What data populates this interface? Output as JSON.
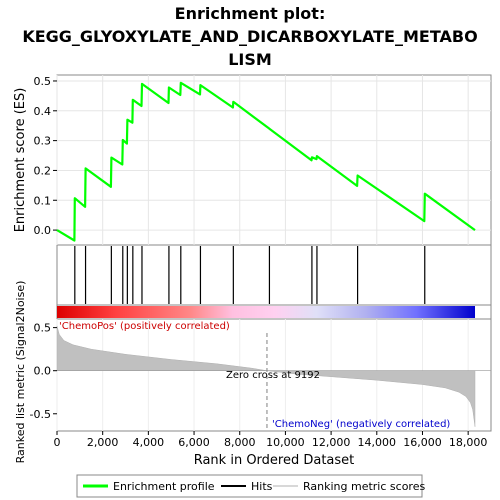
{
  "chart_data": {
    "type": "line",
    "title_lines": [
      "Enrichment plot:",
      "KEGG_GLYOXYLATE_AND_DICARBOXYLATE_METABO",
      "LISM"
    ],
    "ylabel_top": "Enrichment score (ES)",
    "ylabel_bottom": "Ranked list metric (Signal2Noise)",
    "xlabel": "Rank in Ordered Dataset",
    "x_ticks": [
      0,
      2000,
      4000,
      6000,
      8000,
      10000,
      12000,
      14000,
      16000,
      18000
    ],
    "x_tick_labels": [
      "0",
      "2,000",
      "4,000",
      "6,000",
      "8,000",
      "10,000",
      "12,000",
      "14,000",
      "16,000",
      "18,000"
    ],
    "xlim": [
      0,
      19000
    ],
    "es_ylim": [
      -0.05,
      0.52
    ],
    "es_ticks": [
      0.0,
      0.1,
      0.2,
      0.3,
      0.4,
      0.5
    ],
    "es_tick_labels": [
      "0.0",
      "0.1",
      "0.2",
      "0.3",
      "0.4",
      "0.5"
    ],
    "metric_ylim": [
      -0.7,
      0.6
    ],
    "metric_ticks": [
      0.5,
      0.0,
      -0.5
    ],
    "metric_tick_labels": [
      "0.5",
      "0.0",
      "-0.5"
    ],
    "n_genes": 18300,
    "hits": [
      780,
      1250,
      2380,
      2880,
      3080,
      3320,
      3720,
      4900,
      5420,
      6280,
      7720,
      9300,
      11160,
      11380,
      13160,
      16100
    ],
    "es_curve": {
      "x": [
        0,
        760,
        780,
        1230,
        1250,
        2360,
        2380,
        2860,
        2880,
        3060,
        3080,
        3300,
        3320,
        3700,
        3720,
        4880,
        4900,
        5400,
        5420,
        6260,
        6280,
        7700,
        7720,
        9280,
        9300,
        11140,
        11160,
        11360,
        11380,
        13140,
        13160,
        16080,
        16100,
        18300
      ],
      "y": [
        0.0,
        -0.035,
        0.107,
        0.078,
        0.207,
        0.145,
        0.243,
        0.22,
        0.302,
        0.29,
        0.37,
        0.36,
        0.437,
        0.416,
        0.49,
        0.426,
        0.478,
        0.453,
        0.494,
        0.455,
        0.486,
        0.411,
        0.43,
        0.341,
        0.34,
        0.234,
        0.244,
        0.238,
        0.248,
        0.148,
        0.183,
        0.03,
        0.122,
        0.0
      ]
    },
    "metric_curve": {
      "x": [
        0,
        100,
        300,
        700,
        1500,
        3000,
        5000,
        7000,
        8500,
        9192,
        10500,
        12000,
        14000,
        16000,
        17000,
        17600,
        17900,
        18100,
        18200,
        18300
      ],
      "y": [
        0.52,
        0.42,
        0.35,
        0.3,
        0.25,
        0.19,
        0.13,
        0.08,
        0.03,
        0.0,
        -0.04,
        -0.07,
        -0.11,
        -0.16,
        -0.2,
        -0.25,
        -0.3,
        -0.37,
        -0.45,
        -0.65
      ]
    },
    "zero_cross": 9192,
    "annotations": {
      "pos_label": "'ChemoPos' (positively correlated)",
      "neg_label": "'ChemoNeg' (negatively correlated)",
      "zero_cross_label": "Zero cross at 9192"
    },
    "legend": {
      "placement": "bottom",
      "items": [
        {
          "label": "Enrichment profile",
          "color": "#00ff00",
          "kind": "line"
        },
        {
          "label": "Hits",
          "color": "#000000",
          "kind": "line"
        },
        {
          "label": "Ranking metric scores",
          "color": "#c0c0c0",
          "kind": "line"
        }
      ]
    },
    "colors": {
      "es_line": "#00ff00",
      "metric_fill": "#c0c0c0",
      "pos_text": "#cc0000",
      "neg_text": "#0000cc",
      "zero_cross_line": "#808080",
      "gradient": [
        "#dd0000",
        "#ff6060",
        "#ffc0e0",
        "#d0d0f0",
        "#8080ff",
        "#0000cc"
      ]
    }
  }
}
